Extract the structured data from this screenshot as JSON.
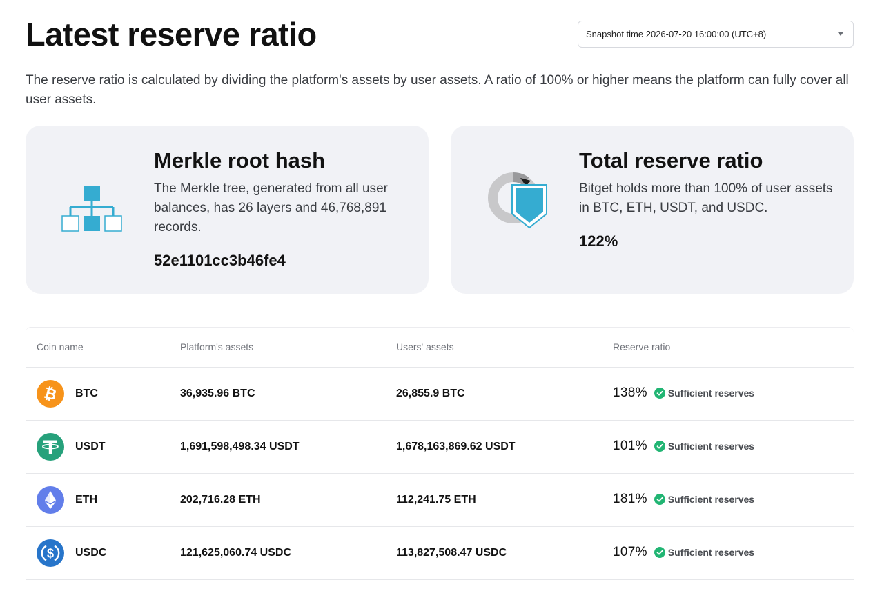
{
  "header": {
    "title": "Latest reserve ratio",
    "snapshot_select": "Snapshot time 2026-07-20 16:00:00 (UTC+8)"
  },
  "intro": "The reserve ratio is calculated by dividing the platform's assets by user assets. A ratio of 100% or higher means the platform can fully cover all user assets.",
  "cards": {
    "merkle": {
      "icon": "merkle-tree-icon",
      "title": "Merkle root hash",
      "description": "The Merkle tree, generated from all user balances, has 26 layers and 46,768,891 records.",
      "value": "52e1101cc3b46fe4"
    },
    "reserve": {
      "icon": "shield-donut-icon",
      "title": "Total reserve ratio",
      "description": "Bitget holds more than 100% of user assets in BTC, ETH, USDT, and USDC.",
      "value": "122%"
    }
  },
  "table": {
    "columns": [
      "Coin name",
      "Platform's assets",
      "Users' assets",
      "Reserve ratio"
    ],
    "rows": [
      {
        "coin": "BTC",
        "icon": "btc-icon",
        "platform": "36,935.96 BTC",
        "users": "26,855.9 BTC",
        "ratio": "138%",
        "status": "Sufficient reserves"
      },
      {
        "coin": "USDT",
        "icon": "usdt-icon",
        "platform": "1,691,598,498.34 USDT",
        "users": "1,678,163,869.62 USDT",
        "ratio": "101%",
        "status": "Sufficient reserves"
      },
      {
        "coin": "ETH",
        "icon": "eth-icon",
        "platform": "202,716.28 ETH",
        "users": "112,241.75 ETH",
        "ratio": "181%",
        "status": "Sufficient reserves"
      },
      {
        "coin": "USDC",
        "icon": "usdc-icon",
        "platform": "121,625,060.74 USDC",
        "users": "113,827,508.47 USDC",
        "ratio": "107%",
        "status": "Sufficient reserves"
      }
    ]
  },
  "colors": {
    "accent_blue": "#35acd1",
    "card_bg": "#f1f2f6",
    "success": "#21b573",
    "btc": "#f7931a",
    "usdt": "#26a17b",
    "eth": "#627eea",
    "usdc": "#2775ca"
  }
}
